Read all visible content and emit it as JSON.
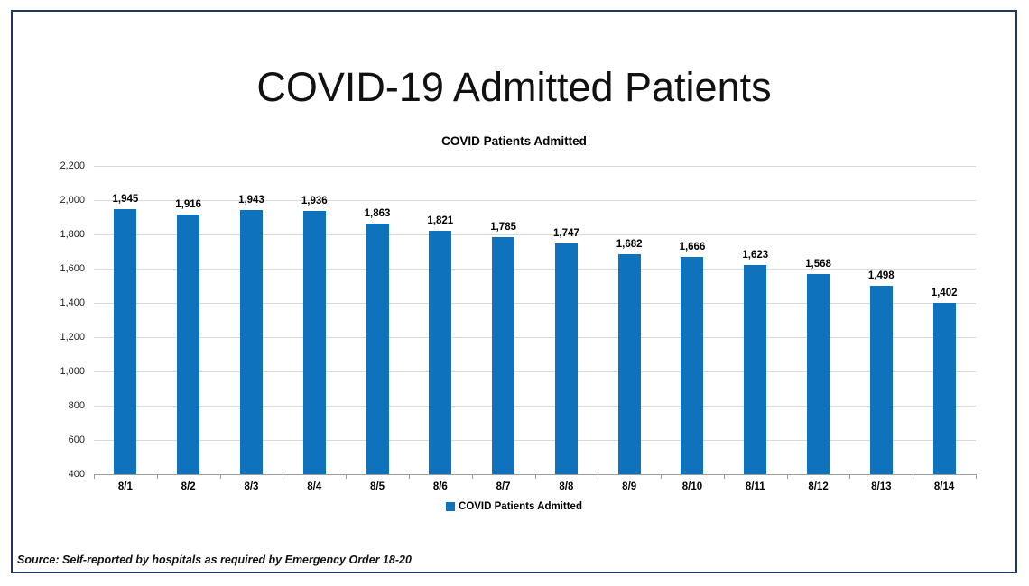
{
  "frame": {
    "border_color": "#22375f"
  },
  "header": {
    "title": "COVID-19 Admitted Patients"
  },
  "chart_data": {
    "type": "bar",
    "title": "COVID Patients Admitted",
    "categories": [
      "8/1",
      "8/2",
      "8/3",
      "8/4",
      "8/5",
      "8/6",
      "8/7",
      "8/8",
      "8/9",
      "8/10",
      "8/11",
      "8/12",
      "8/13",
      "8/14"
    ],
    "values": [
      1945,
      1916,
      1943,
      1936,
      1863,
      1821,
      1785,
      1747,
      1682,
      1666,
      1623,
      1568,
      1498,
      1402
    ],
    "data_labels": [
      "1,945",
      "1,916",
      "1,943",
      "1,936",
      "1,863",
      "1,821",
      "1,785",
      "1,747",
      "1,682",
      "1,666",
      "1,623",
      "1,568",
      "1,498",
      "1,402"
    ],
    "ylim": [
      400,
      2200
    ],
    "ytick_step": 200,
    "ytick_labels": [
      "2,200",
      "2,000",
      "1,800",
      "1,600",
      "1,400",
      "1,200",
      "1,000",
      "800",
      "600",
      "400"
    ],
    "grid": true,
    "legend": {
      "position": "bottom",
      "label": "COVID Patients Admitted"
    },
    "bar_color": "#0f72bc",
    "gridline_color": "#d9d9d9",
    "axis_line_color": "#9d9d9d"
  },
  "footer": {
    "source": "Source: Self-reported by hospitals as required by Emergency Order 18-20"
  }
}
